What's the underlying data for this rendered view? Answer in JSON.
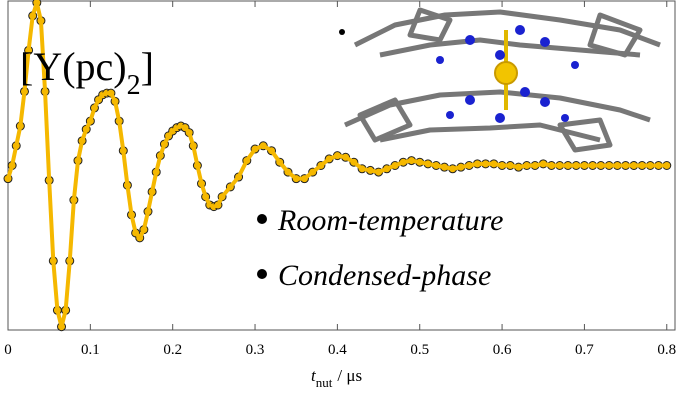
{
  "chart_data": {
    "type": "scatter-line",
    "title": {
      "main": "[Y(pc)",
      "subscript": "2",
      "close": "]"
    },
    "annotations": [
      "Room-temperature",
      "Condensed-phase"
    ],
    "xlabel": {
      "symbol": "t",
      "subscript": "nut",
      "unit": "/ μs"
    },
    "xlim": [
      0,
      0.81
    ],
    "ylim": [
      -1,
      1
    ],
    "xticks": [
      0,
      0.1,
      0.2,
      0.3,
      0.4,
      0.5,
      0.6,
      0.7,
      0.8
    ],
    "color": "#f5b800",
    "marker_edge": "#222222",
    "x": [
      0,
      0.005,
      0.01,
      0.015,
      0.02,
      0.025,
      0.03,
      0.035,
      0.04,
      0.045,
      0.05,
      0.055,
      0.06,
      0.065,
      0.07,
      0.075,
      0.08,
      0.085,
      0.09,
      0.095,
      0.1,
      0.105,
      0.11,
      0.115,
      0.12,
      0.125,
      0.13,
      0.135,
      0.14,
      0.145,
      0.15,
      0.155,
      0.16,
      0.165,
      0.17,
      0.175,
      0.18,
      0.185,
      0.19,
      0.195,
      0.2,
      0.205,
      0.21,
      0.215,
      0.22,
      0.225,
      0.23,
      0.235,
      0.24,
      0.245,
      0.25,
      0.255,
      0.26,
      0.27,
      0.28,
      0.29,
      0.3,
      0.31,
      0.32,
      0.33,
      0.34,
      0.35,
      0.36,
      0.37,
      0.38,
      0.39,
      0.4,
      0.41,
      0.42,
      0.43,
      0.44,
      0.45,
      0.46,
      0.47,
      0.48,
      0.49,
      0.5,
      0.51,
      0.52,
      0.53,
      0.54,
      0.55,
      0.56,
      0.57,
      0.58,
      0.59,
      0.6,
      0.61,
      0.62,
      0.63,
      0.64,
      0.65,
      0.66,
      0.67,
      0.68,
      0.69,
      0.7,
      0.71,
      0.72,
      0.73,
      0.74,
      0.75,
      0.76,
      0.77,
      0.78,
      0.79,
      0.8
    ],
    "values": [
      -0.08,
      0,
      0.12,
      0.24,
      0.45,
      0.7,
      0.91,
      0.99,
      0.88,
      0.45,
      -0.09,
      -0.58,
      -0.88,
      -0.98,
      -0.88,
      -0.58,
      -0.21,
      0.03,
      0.15,
      0.22,
      0.27,
      0.35,
      0.4,
      0.43,
      0.44,
      0.44,
      0.39,
      0.27,
      0.09,
      -0.12,
      -0.3,
      -0.41,
      -0.44,
      -0.39,
      -0.28,
      -0.16,
      -0.04,
      0.06,
      0.13,
      0.18,
      0.21,
      0.23,
      0.24,
      0.23,
      0.2,
      0.12,
      0,
      -0.11,
      -0.19,
      -0.24,
      -0.25,
      -0.24,
      -0.19,
      -0.13,
      -0.07,
      0.03,
      0.1,
      0.12,
      0.09,
      0.02,
      -0.04,
      -0.08,
      -0.08,
      -0.04,
      0,
      0.04,
      0.06,
      0.05,
      0.02,
      -0.02,
      -0.03,
      -0.04,
      -0.02,
      0,
      0.02,
      0.03,
      0.02,
      0.01,
      0,
      -0.01,
      -0.02,
      -0.01,
      0,
      0.01,
      0.01,
      0.01,
      0,
      0,
      -0.01,
      0,
      0,
      0.01,
      0,
      0,
      0,
      0,
      0,
      0,
      0,
      0,
      0,
      0,
      0,
      0,
      0,
      0,
      0
    ]
  }
}
